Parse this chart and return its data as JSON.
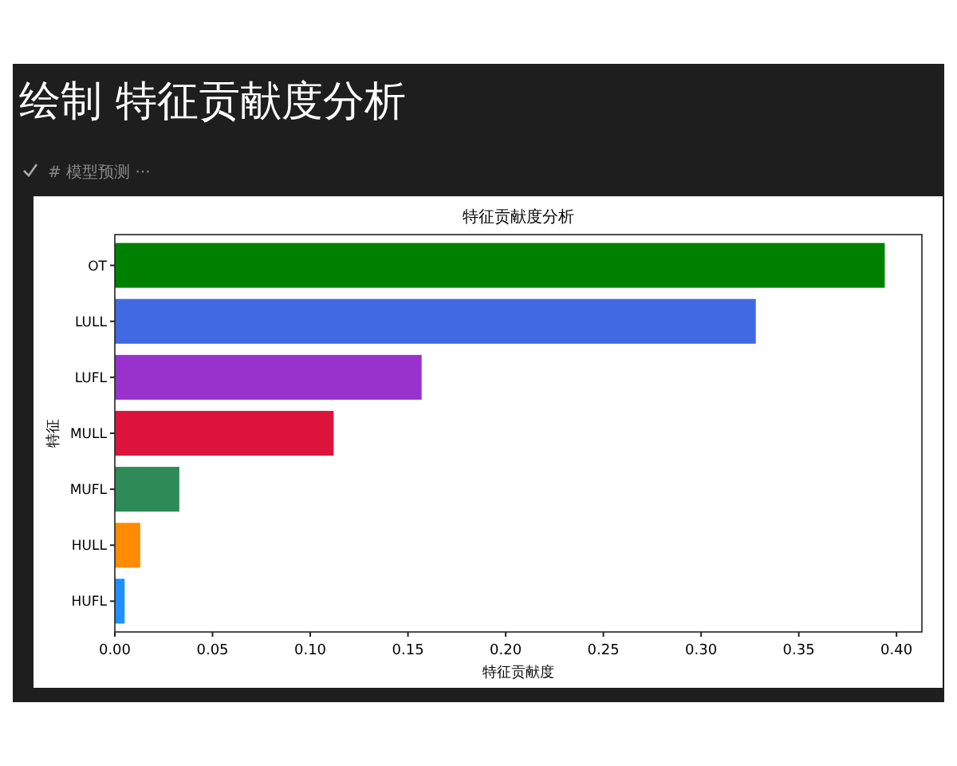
{
  "chart_data": {
    "type": "bar",
    "orientation": "horizontal",
    "title": "特征贡献度分析",
    "xlabel": "特征贡献度",
    "ylabel": "特征",
    "categories": [
      "OT",
      "LULL",
      "LUFL",
      "MULL",
      "MUFL",
      "HULL",
      "HUFL"
    ],
    "values": [
      0.394,
      0.328,
      0.157,
      0.112,
      0.033,
      0.013,
      0.005
    ],
    "colors": [
      "#008000",
      "#4169e1",
      "#9932cc",
      "#dc143c",
      "#2e8b57",
      "#ff8c00",
      "#1e90ff"
    ],
    "xlim": [
      0,
      0.413
    ],
    "xticks": [
      {
        "value": 0,
        "label": "0.00"
      },
      0.05,
      {
        "value": 0.1,
        "label": "0.10"
      },
      0.15,
      {
        "value": 0.2,
        "label": "0.20"
      },
      0.25,
      {
        "value": 0.3,
        "label": "0.30"
      },
      0.35,
      {
        "value": 0.4,
        "label": "0.40"
      }
    ],
    "annotations": [
      "绘制 特征贡献度分析",
      "# 模型预测 ···"
    ]
  }
}
